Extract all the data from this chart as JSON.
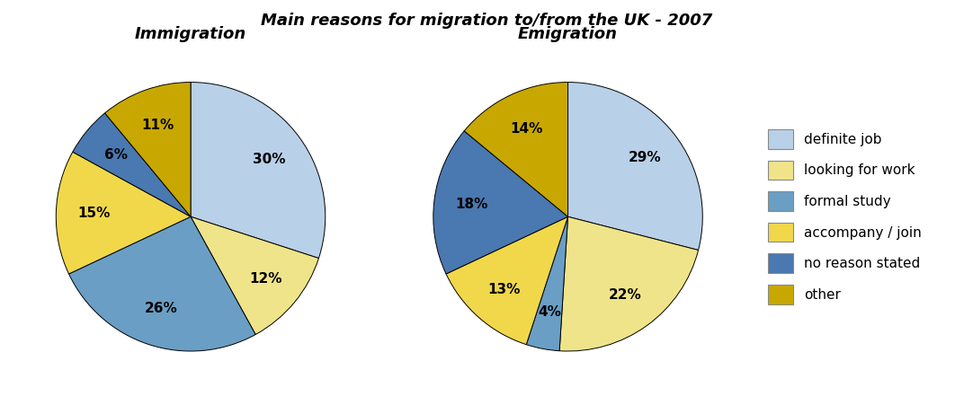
{
  "title": "Main reasons for migration to/from the UK - 2007",
  "immigration_label": "Immigration",
  "emigration_label": "Emigration",
  "categories": [
    "definite job",
    "looking for work",
    "formal study",
    "accompany / join",
    "no reason stated",
    "other"
  ],
  "colors": [
    "#b8d0e8",
    "#f0e48a",
    "#6a9ec5",
    "#f0d84a",
    "#4a78b0",
    "#c8a800"
  ],
  "immigration_values": [
    30,
    12,
    26,
    15,
    6,
    11
  ],
  "emigration_values": [
    29,
    22,
    4,
    13,
    18,
    14
  ],
  "bg_color": "#ffffff",
  "title_fontsize": 13,
  "subtitle_fontsize": 13,
  "label_fontsize": 11,
  "legend_fontsize": 11
}
